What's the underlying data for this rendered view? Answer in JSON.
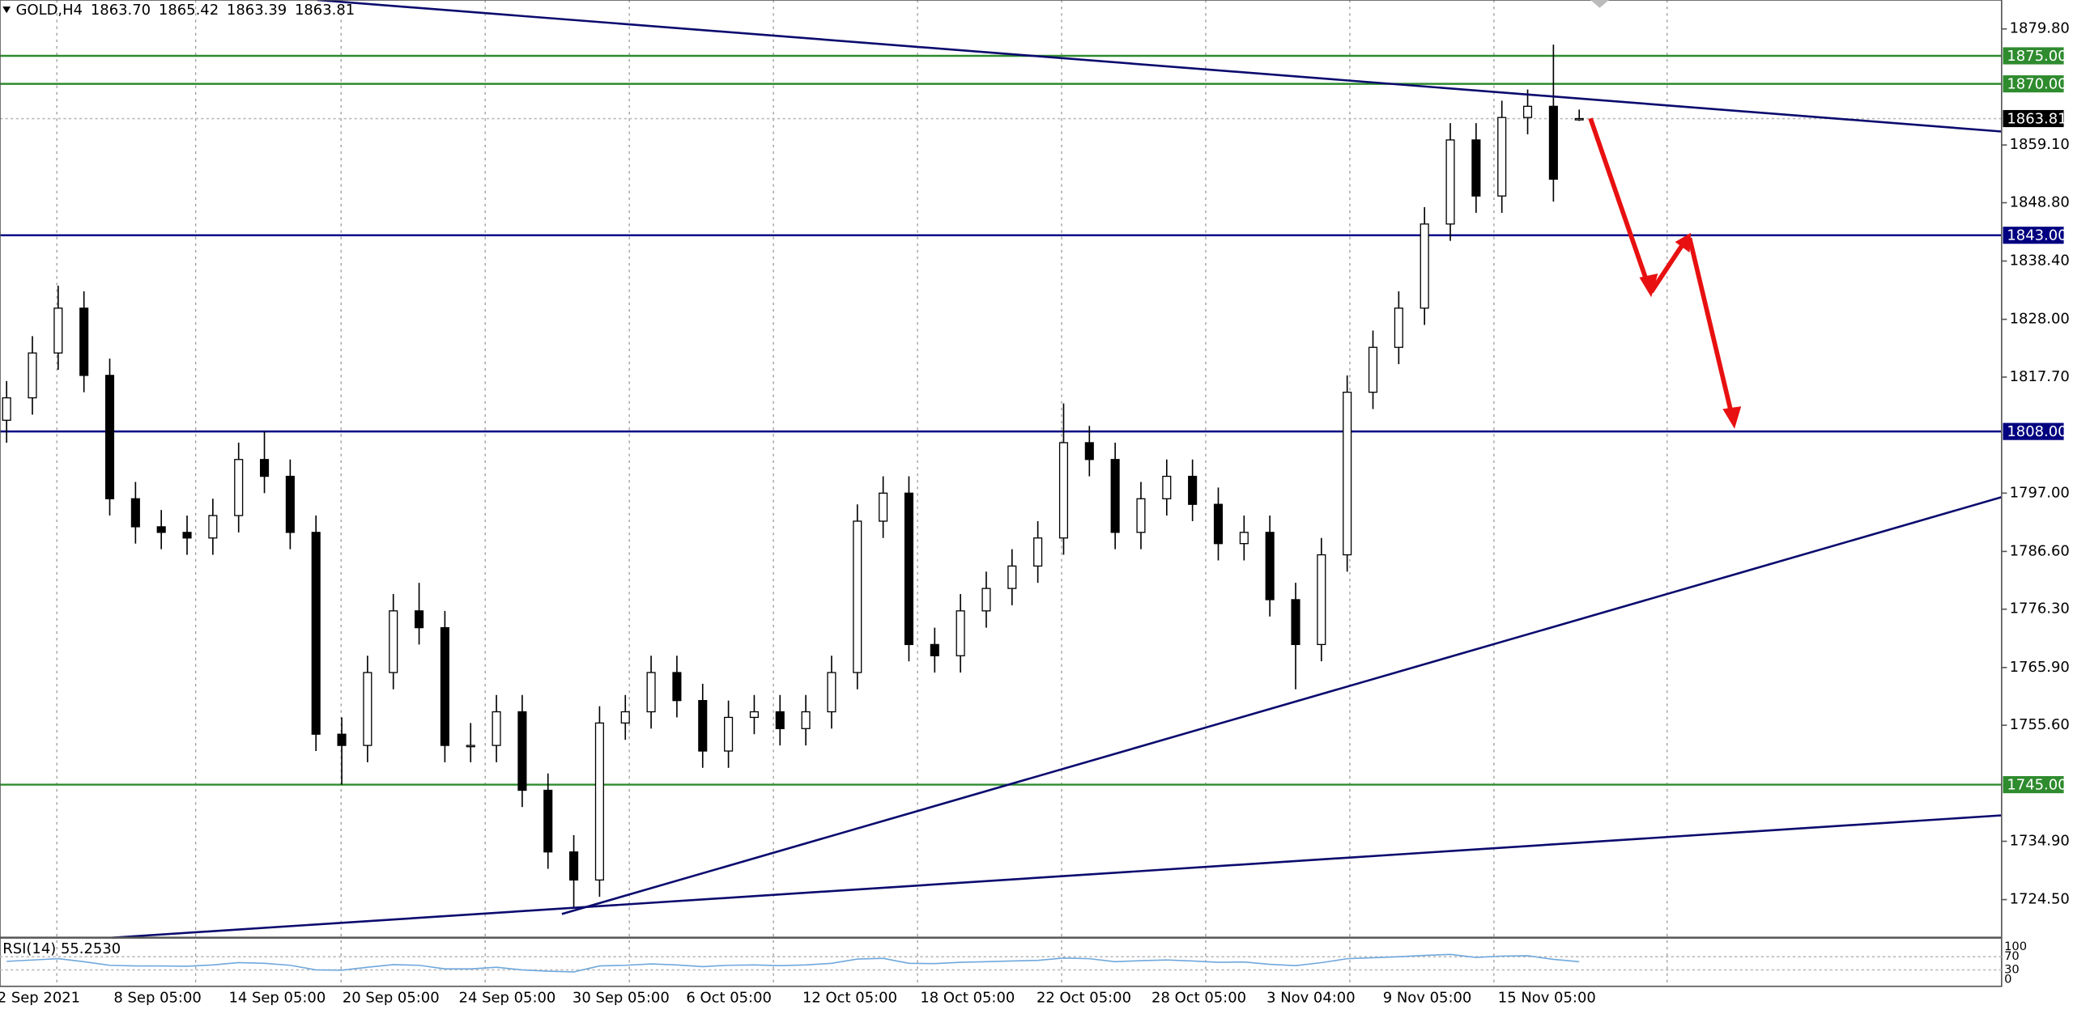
{
  "chart_data": {
    "type": "candlestick",
    "symbol": "GOLD,H4",
    "header_ohlc": [
      "1863.70",
      "1865.42",
      "1863.39",
      "1863.81"
    ],
    "open": [
      1810,
      1814,
      1822,
      1830,
      1818,
      1796,
      1791,
      1790,
      1789,
      1793,
      1803,
      1800,
      1790,
      1754,
      1752,
      1765,
      1776,
      1773,
      1752,
      1752,
      1758,
      1744,
      1733,
      1728,
      1756,
      1758,
      1765,
      1760,
      1751,
      1757,
      1758,
      1755,
      1758,
      1765,
      1792,
      1797,
      1770,
      1768,
      1776,
      1780,
      1784,
      1789,
      1806,
      1803,
      1790,
      1796,
      1800,
      1795,
      1788,
      1790,
      1778,
      1770,
      1786,
      1815,
      1823,
      1830,
      1845,
      1860,
      1850,
      1864,
      1866,
      1863.7
    ],
    "high": [
      1817,
      1825,
      1834,
      1833,
      1821,
      1799,
      1794,
      1793,
      1796,
      1806,
      1808,
      1803,
      1793,
      1757,
      1768,
      1779,
      1781,
      1776,
      1756,
      1761,
      1761,
      1747,
      1736,
      1759,
      1761,
      1768,
      1768,
      1763,
      1760,
      1761,
      1761,
      1761,
      1768,
      1795,
      1800,
      1800,
      1773,
      1779,
      1783,
      1787,
      1792,
      1813,
      1809,
      1806,
      1799,
      1803,
      1803,
      1798,
      1793,
      1793,
      1781,
      1789,
      1818,
      1826,
      1833,
      1848,
      1863,
      1863,
      1867,
      1869,
      1877,
      1865.42
    ],
    "low": [
      1806,
      1811,
      1819,
      1815,
      1793,
      1788,
      1787,
      1786,
      1786,
      1790,
      1797,
      1787,
      1751,
      1745,
      1749,
      1762,
      1770,
      1749,
      1749,
      1749,
      1741,
      1730,
      1723,
      1725,
      1753,
      1755,
      1757,
      1748,
      1748,
      1754,
      1752,
      1752,
      1755,
      1762,
      1789,
      1767,
      1765,
      1765,
      1773,
      1777,
      1781,
      1786,
      1800,
      1787,
      1787,
      1793,
      1792,
      1785,
      1785,
      1775,
      1762,
      1767,
      1783,
      1812,
      1820,
      1827,
      1842,
      1847,
      1847,
      1861,
      1849,
      1863.39
    ],
    "close": [
      1814,
      1822,
      1830,
      1818,
      1796,
      1791,
      1790,
      1789,
      1793,
      1803,
      1800,
      1790,
      1754,
      1752,
      1765,
      1776,
      1773,
      1752,
      1752,
      1758,
      1744,
      1733,
      1728,
      1756,
      1758,
      1765,
      1760,
      1751,
      1757,
      1758,
      1755,
      1758,
      1765,
      1792,
      1797,
      1770,
      1768,
      1776,
      1780,
      1784,
      1789,
      1806,
      1803,
      1790,
      1796,
      1800,
      1795,
      1788,
      1790,
      1778,
      1770,
      1786,
      1815,
      1823,
      1830,
      1845,
      1860,
      1850,
      1864,
      1866,
      1853,
      1863.81
    ],
    "ylim": [
      1717.71,
      1884.96
    ],
    "yticks": [
      {
        "value": 1879.8,
        "label": "1879.80"
      },
      {
        "value": 1859.1,
        "label": "1859.10"
      },
      {
        "value": 1848.8,
        "label": "1848.80"
      },
      {
        "value": 1838.4,
        "label": "1838.40"
      },
      {
        "value": 1828,
        "label": "1828.00"
      },
      {
        "value": 1817.7,
        "label": "1817.70"
      },
      {
        "value": 1797,
        "label": "1797.00"
      },
      {
        "value": 1786.6,
        "label": "1786.60"
      },
      {
        "value": 1776.3,
        "label": "1776.30"
      },
      {
        "value": 1765.9,
        "label": "1765.90"
      },
      {
        "value": 1755.6,
        "label": "1755.60"
      },
      {
        "value": 1734.9,
        "label": "1734.90"
      },
      {
        "value": 1724.5,
        "label": "1724.50"
      }
    ],
    "levels": [
      {
        "value": 1875,
        "label": "1875.00",
        "color": "#2e8b2e"
      },
      {
        "value": 1870,
        "label": "1870.00",
        "color": "#2e8b2e"
      },
      {
        "value": 1843,
        "label": "1843.00",
        "color": "#000080"
      },
      {
        "value": 1808,
        "label": "1808.00",
        "color": "#000080"
      },
      {
        "value": 1745,
        "label": "1745.00",
        "color": "#2e8b2e"
      }
    ],
    "current_price": {
      "value": 1863.81,
      "label": "1863.81"
    },
    "x_labels": [
      "2 Sep 2021",
      "8 Sep 05:00",
      "14 Sep 05:00",
      "20 Sep 05:00",
      "24 Sep 05:00",
      "30 Sep 05:00",
      "6 Oct 05:00",
      "12 Oct 05:00",
      "18 Oct 05:00",
      "22 Oct 05:00",
      "28 Oct 05:00",
      "3 Nov 04:00",
      "9 Nov 05:00",
      "15 Nov 05:00"
    ],
    "rsi": {
      "title": "RSI(14) 55.2530",
      "color": "#6fa8dc",
      "ylim": [
        0,
        100
      ],
      "yticks": [
        100,
        70,
        30,
        0
      ],
      "values": [
        56,
        60,
        64,
        55,
        44,
        42,
        42,
        41,
        45,
        52,
        50,
        44,
        30,
        29,
        38,
        46,
        44,
        33,
        33,
        38,
        30,
        26,
        24,
        42,
        44,
        48,
        45,
        40,
        44,
        45,
        43,
        45,
        50,
        63,
        65,
        50,
        49,
        53,
        55,
        57,
        59,
        66,
        64,
        55,
        58,
        60,
        57,
        53,
        54,
        47,
        43,
        52,
        64,
        67,
        70,
        74,
        77,
        68,
        72,
        73,
        62,
        55
      ]
    }
  }
}
